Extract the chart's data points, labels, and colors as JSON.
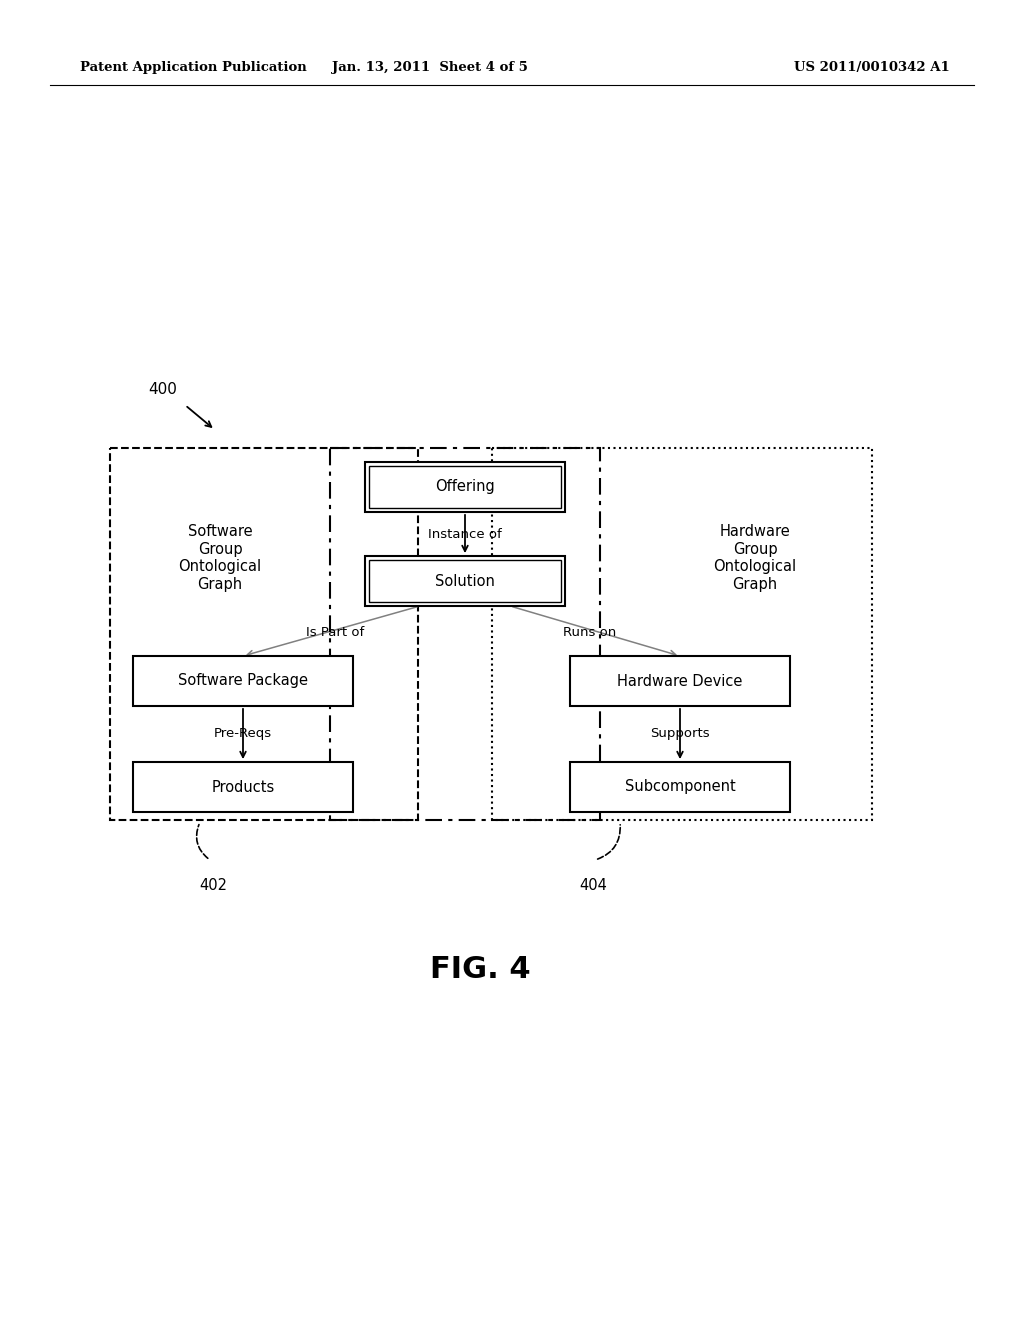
{
  "background_color": "#ffffff",
  "header_left": "Patent Application Publication",
  "header_mid": "Jan. 13, 2011  Sheet 4 of 5",
  "header_right": "US 2011/0010342 A1",
  "fig_label": "FIG. 4",
  "label_400": "400",
  "label_402": "402",
  "label_404": "404",
  "text_software_group": "Software\nGroup\nOntological\nGraph",
  "text_hardware_group": "Hardware\nGroup\nOntological\nGraph",
  "text_instance_of": "Instance of",
  "text_is_part_of": "Is Part of",
  "text_runs_on": "Runs on",
  "text_pre_reqs": "Pre-Reqs",
  "text_supports": "Supports",
  "label_offering": "Offering",
  "label_solution": "Solution",
  "label_software_package": "Software Package",
  "label_products": "Products",
  "label_hardware_device": "Hardware Device",
  "label_subcomponent": "Subcomponent"
}
